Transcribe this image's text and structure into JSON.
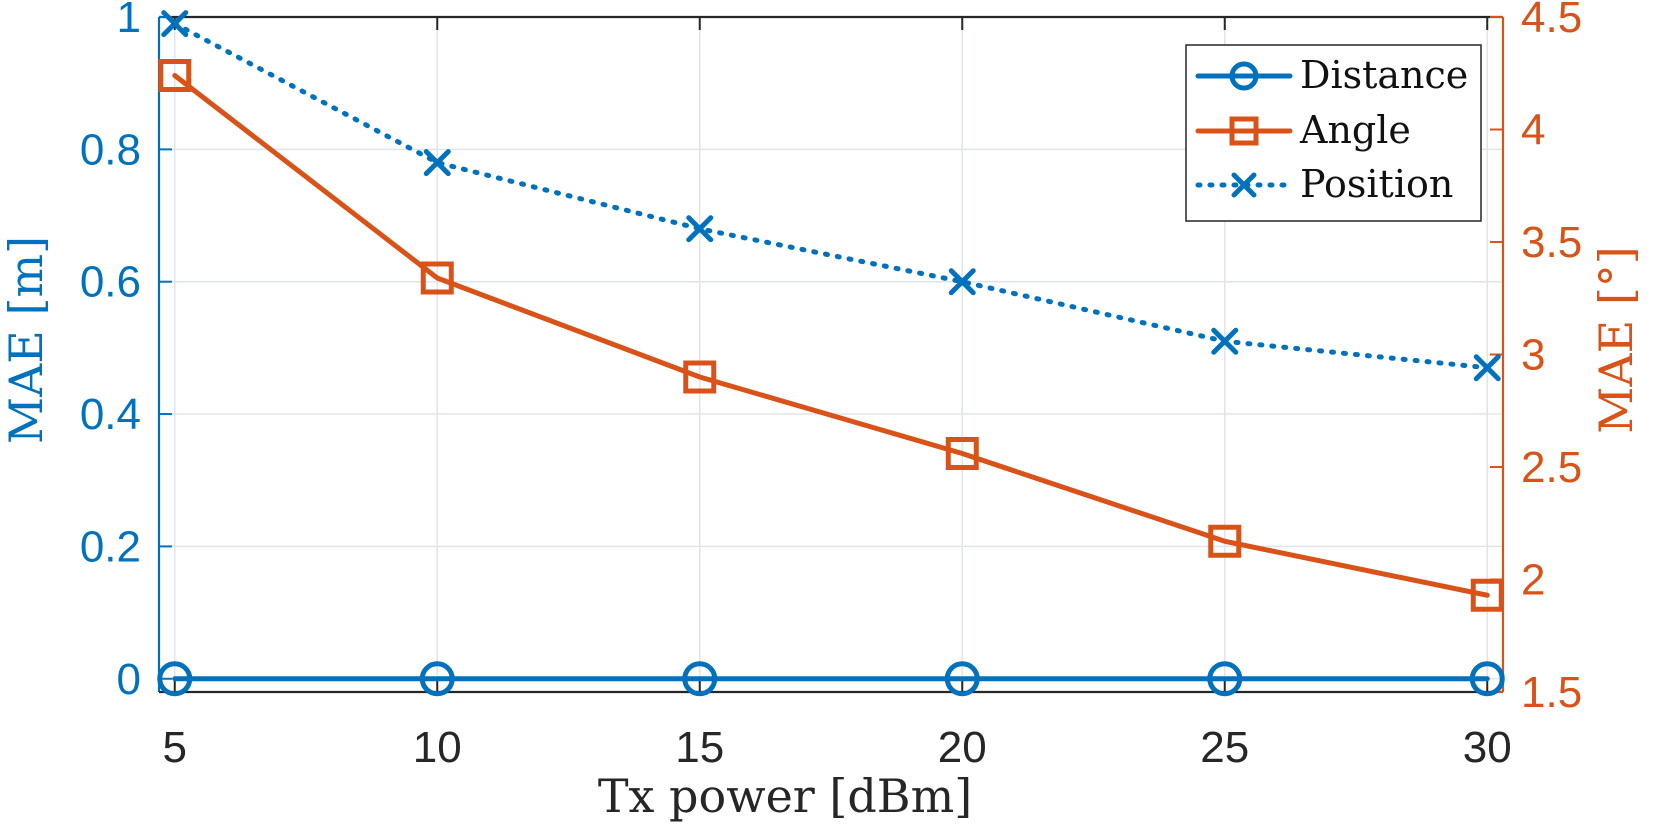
{
  "chart_data": {
    "type": "line",
    "x": [
      5,
      10,
      15,
      20,
      25,
      30
    ],
    "xlabel": "Tx power [dBm]",
    "xlim": [
      4.7,
      30.3
    ],
    "xticks": [
      "5",
      "10",
      "15",
      "20",
      "25",
      "30"
    ],
    "left_axis": {
      "label": "MAE [m]",
      "ylim": [
        -0.02,
        1.0
      ],
      "ticks": [
        "0",
        "0.2",
        "0.4",
        "0.6",
        "0.8",
        "1"
      ],
      "color": "#0072BD"
    },
    "right_axis": {
      "label": "MAE [°]",
      "ylim": [
        1.5,
        4.5
      ],
      "ticks": [
        "1.5",
        "2",
        "2.5",
        "3",
        "3.5",
        "4",
        "4.5"
      ],
      "color": "#D95319"
    },
    "series": [
      {
        "name": "Distance",
        "axis": "left",
        "color": "#0072BD",
        "marker": "circle",
        "linestyle": "solid",
        "values": [
          0.0,
          0.0,
          0.0,
          0.0,
          0.0,
          0.0
        ]
      },
      {
        "name": "Angle",
        "axis": "right",
        "color": "#D95319",
        "marker": "square",
        "linestyle": "solid",
        "values": [
          4.24,
          3.34,
          2.9,
          2.56,
          2.17,
          1.93
        ]
      },
      {
        "name": "Position",
        "axis": "left",
        "color": "#0072BD",
        "marker": "x",
        "linestyle": "dotted",
        "values": [
          0.99,
          0.78,
          0.68,
          0.6,
          0.51,
          0.47
        ]
      }
    ],
    "grid": true,
    "legend_position": "top-right"
  }
}
